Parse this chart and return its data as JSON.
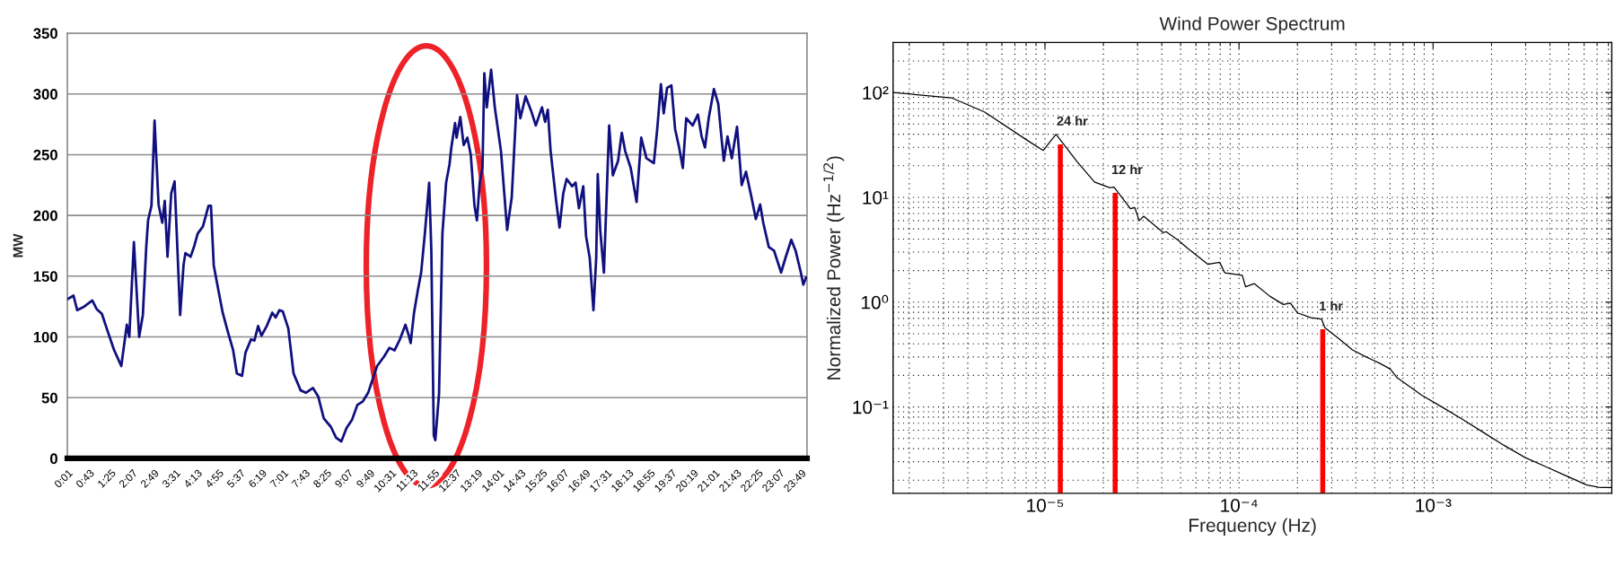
{
  "chart_data": [
    {
      "type": "line",
      "ylabel": "MW",
      "color": "#10107f",
      "x": [
        0.0,
        0.2,
        0.32,
        0.55,
        0.81,
        0.95,
        1.12,
        1.29,
        1.52,
        1.75,
        1.93,
        2.01,
        2.16,
        2.33,
        2.45,
        2.56,
        2.62,
        2.73,
        2.83,
        2.96,
        3.08,
        3.16,
        3.25,
        3.37,
        3.48,
        3.66,
        3.77,
        3.83,
        4.0,
        4.12,
        4.23,
        4.4,
        4.58,
        4.66,
        4.75,
        4.86,
        5.04,
        5.21,
        5.38,
        5.5,
        5.67,
        5.78,
        5.96,
        6.07,
        6.19,
        6.3,
        6.47,
        6.65,
        6.76,
        6.88,
        6.99,
        7.17,
        7.34,
        7.57,
        7.74,
        7.97,
        8.14,
        8.32,
        8.55,
        8.72,
        8.89,
        9.06,
        9.24,
        9.41,
        9.59,
        9.76,
        9.93,
        10.05,
        10.28,
        10.45,
        10.62,
        10.79,
        10.97,
        11.08,
        11.14,
        11.25,
        11.37,
        11.48,
        11.6,
        11.74,
        11.81,
        11.89,
        11.94,
        12.06,
        12.17,
        12.29,
        12.4,
        12.46,
        12.58,
        12.63,
        12.75,
        12.86,
        12.98,
        13.09,
        13.21,
        13.29,
        13.38,
        13.47,
        13.53,
        13.61,
        13.75,
        13.87,
        14.07,
        14.27,
        14.42,
        14.59,
        14.7,
        14.87,
        15.05,
        15.2,
        15.4,
        15.5,
        15.59,
        15.68,
        15.86,
        15.97,
        16.09,
        16.2,
        16.38,
        16.49,
        16.6,
        16.74,
        16.83,
        16.95,
        17.07,
        17.16,
        17.21,
        17.29,
        17.41,
        17.58,
        17.7,
        17.87,
        17.99,
        18.1,
        18.28,
        18.47,
        18.62,
        18.79,
        19.03,
        19.14,
        19.26,
        19.35,
        19.46,
        19.6,
        19.72,
        19.85,
        19.97,
        20.08,
        20.29,
        20.46,
        20.58,
        20.69,
        20.81,
        20.98,
        21.12,
        21.21,
        21.3,
        21.42,
        21.56,
        21.73,
        21.88,
        22.02,
        22.19,
        22.34,
        22.48,
        22.58,
        22.76,
        22.93,
        23.16,
        23.3,
        23.49,
        23.63,
        23.8,
        23.88,
        23.97
      ],
      "values": [
        131,
        134,
        122,
        125,
        130,
        123,
        119,
        106,
        89,
        76,
        110,
        100,
        178,
        100,
        118,
        174,
        196,
        208,
        278,
        209,
        194,
        212,
        166,
        218,
        228,
        118,
        159,
        169,
        166,
        175,
        185,
        191,
        208,
        208,
        159,
        144,
        120,
        104,
        89,
        70,
        68,
        87,
        98,
        97,
        109,
        101,
        109,
        120,
        116,
        122,
        121,
        107,
        70,
        56,
        54,
        58,
        51,
        33,
        26,
        17,
        14,
        25,
        32,
        44,
        47,
        54,
        67,
        76,
        84,
        91,
        89,
        98,
        110,
        101,
        95,
        120,
        138,
        153,
        185,
        227,
        171,
        19,
        15,
        53,
        185,
        227,
        242,
        256,
        276,
        264,
        281,
        258,
        264,
        250,
        208,
        196,
        227,
        239,
        317,
        289,
        320,
        289,
        253,
        188,
        215,
        299,
        280,
        298,
        286,
        274,
        289,
        277,
        287,
        253,
        212,
        190,
        218,
        230,
        224,
        227,
        206,
        224,
        183,
        165,
        122,
        165,
        234,
        188,
        153,
        274,
        233,
        245,
        268,
        253,
        239,
        211,
        264,
        247,
        243,
        271,
        308,
        284,
        305,
        307,
        271,
        256,
        239,
        280,
        274,
        283,
        265,
        256,
        280,
        304,
        292,
        268,
        245,
        265,
        247,
        273,
        225,
        236,
        216,
        197,
        209,
        194,
        174,
        171,
        153,
        165,
        180,
        171,
        153,
        143,
        149
      ],
      "xlim": [
        0,
        24
      ],
      "ylim": [
        0,
        350
      ],
      "xticks": [
        {
          "value": 0.0167,
          "label": "0:01"
        },
        {
          "value": 0.7167,
          "label": "0:43"
        },
        {
          "value": 1.4167,
          "label": "1:25"
        },
        {
          "value": 2.1167,
          "label": "2:07"
        },
        {
          "value": 2.8167,
          "label": "2:49"
        },
        {
          "value": 3.5167,
          "label": "3:31"
        },
        {
          "value": 4.2167,
          "label": "4:13"
        },
        {
          "value": 4.9167,
          "label": "4:55"
        },
        {
          "value": 5.6167,
          "label": "5:37"
        },
        {
          "value": 6.3167,
          "label": "6:19"
        },
        {
          "value": 7.0167,
          "label": "7:01"
        },
        {
          "value": 7.7167,
          "label": "7:43"
        },
        {
          "value": 8.4167,
          "label": "8:25"
        },
        {
          "value": 9.1167,
          "label": "9:07"
        },
        {
          "value": 9.8167,
          "label": "9:49"
        },
        {
          "value": 10.5167,
          "label": "10:31"
        },
        {
          "value": 11.2167,
          "label": "11:13"
        },
        {
          "value": 11.9167,
          "label": "11:55"
        },
        {
          "value": 12.6167,
          "label": "12:37"
        },
        {
          "value": 13.3167,
          "label": "13:19"
        },
        {
          "value": 14.0167,
          "label": "14:01"
        },
        {
          "value": 14.7167,
          "label": "14:43"
        },
        {
          "value": 15.4167,
          "label": "15:25"
        },
        {
          "value": 16.1167,
          "label": "16:07"
        },
        {
          "value": 16.8167,
          "label": "16:49"
        },
        {
          "value": 17.5167,
          "label": "17:31"
        },
        {
          "value": 18.2167,
          "label": "18:13"
        },
        {
          "value": 18.9167,
          "label": "18:55"
        },
        {
          "value": 19.6167,
          "label": "19:37"
        },
        {
          "value": 20.3167,
          "label": "20:19"
        },
        {
          "value": 21.0167,
          "label": "21:01"
        },
        {
          "value": 21.7167,
          "label": "21:43"
        },
        {
          "value": 22.4167,
          "label": "22:25"
        },
        {
          "value": 23.1167,
          "label": "23:07"
        },
        {
          "value": 23.8167,
          "label": "23:49"
        }
      ],
      "yticks": [
        0,
        50,
        100,
        150,
        200,
        250,
        300,
        350
      ],
      "grid": "y"
    },
    {
      "type": "line",
      "title": "Wind Power Spectrum",
      "xlabel": "Frequency (Hz)",
      "ylabel": "Normalized Power (Hz$^{−1/2}$)",
      "log": "xy",
      "xlim": [
        1.65e-06,
        0.00833
      ],
      "ylim": [
        0.015,
        300
      ],
      "xticks": [
        {
          "value": 1e-05,
          "label": "10⁻⁵"
        },
        {
          "value": 0.0001,
          "label": "10⁻⁴"
        },
        {
          "value": 0.001,
          "label": "10⁻³"
        }
      ],
      "yticks": [
        {
          "value": 0.1,
          "label": "10⁻¹"
        },
        {
          "value": 1,
          "label": "10⁰"
        },
        {
          "value": 10,
          "label": "10¹"
        },
        {
          "value": 100,
          "label": "10²"
        }
      ],
      "grid": true,
      "series": [
        {
          "type": "line",
          "color": "#000000",
          "x": [
            1.65e-06,
            3.3e-06,
            4.9e-06,
            8.3e-06,
            9.8e-06,
            1.14e-05,
            1.46e-05,
            1.8e-05,
            2.15e-05,
            2.27e-05,
            2.76e-05,
            2.9e-05,
            3.06e-05,
            3.23e-05,
            4.07e-05,
            4.21e-05,
            4.86e-05,
            5.4e-05,
            6.9e-05,
            7.95e-05,
            8.45e-05,
            0.000104,
            0.000108,
            0.00012,
            0.000144,
            0.000169,
            0.000184,
            0.0002,
            0.000235,
            0.000266,
            0.000277,
            0.000326,
            0.000384,
            0.000452,
            0.000533,
            0.000602,
            0.000653,
            0.00087,
            0.00111,
            0.00142,
            0.00182,
            0.00232,
            0.00297,
            0.00379,
            0.00485,
            0.0062,
            0.0073,
            0.0083
          ],
          "values": [
            100,
            89,
            65,
            34,
            28,
            40,
            22,
            14,
            12.4,
            12.5,
            7.8,
            8.0,
            6.0,
            6.6,
            4.6,
            4.7,
            3.9,
            3.3,
            2.3,
            2.4,
            1.9,
            1.8,
            1.4,
            1.5,
            1.14,
            0.95,
            0.98,
            0.79,
            0.71,
            0.69,
            0.57,
            0.45,
            0.35,
            0.3,
            0.26,
            0.23,
            0.19,
            0.13,
            0.1,
            0.076,
            0.057,
            0.043,
            0.033,
            0.027,
            0.022,
            0.018,
            0.017,
            0.017
          ]
        },
        {
          "type": "bar",
          "color": "#ff0000",
          "x": [
            1.2e-05,
            2.3e-05,
            0.00027
          ],
          "values": [
            32,
            11,
            0.55
          ]
        }
      ],
      "annotations": [
        {
          "text": "24 hr",
          "x": 1.2e-05,
          "y": 32
        },
        {
          "text": "12 hr",
          "x": 2.3e-05,
          "y": 11
        },
        {
          "text": "1 hr",
          "x": 0.00027,
          "y": 0.55
        }
      ]
    }
  ]
}
